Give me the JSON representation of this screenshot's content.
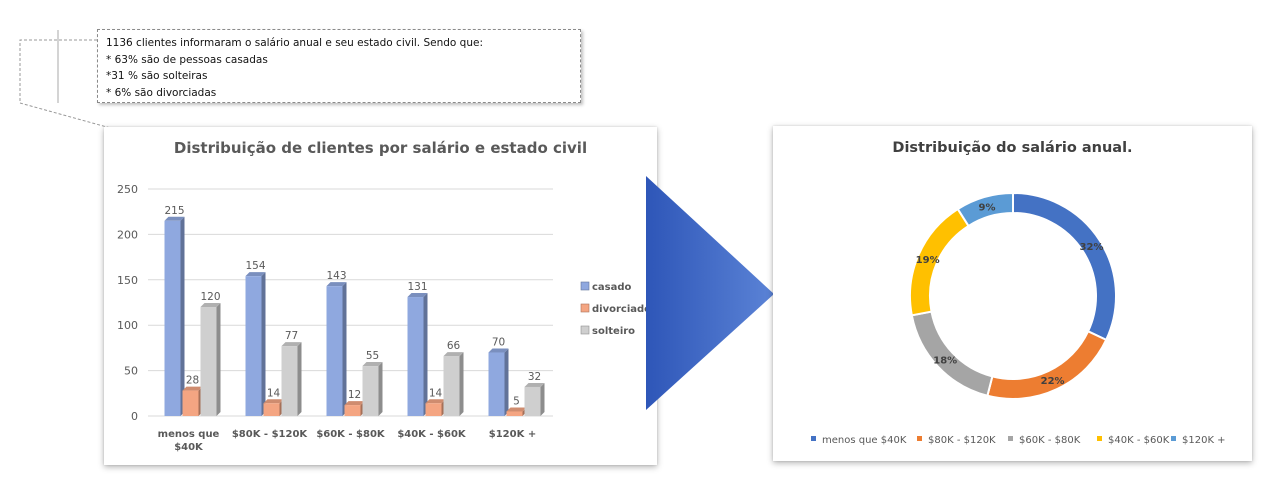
{
  "callout": {
    "lines": [
      "1136 clientes informaram o salário anual e seu estado civil. Sendo que:",
      "* 63% são de pessoas casadas",
      "*31 % são solteiras",
      "* 6% são divorciadas"
    ]
  },
  "chart_data": [
    {
      "type": "bar",
      "title": "Distribuição de clientes por salário e estado civil",
      "categories": [
        "menos que $40K",
        "$80K - $120K",
        "$60K - $80K",
        "$40K - $60K",
        "$120K +"
      ],
      "series": [
        {
          "name": "casado",
          "values": [
            215,
            154,
            143,
            131,
            70
          ],
          "color": "#8fa8df"
        },
        {
          "name": "divorciado",
          "values": [
            28,
            14,
            12,
            14,
            5
          ],
          "color": "#f4a582"
        },
        {
          "name": "solteiro",
          "values": [
            120,
            77,
            55,
            66,
            32
          ],
          "color": "#cfcfcf"
        }
      ],
      "yticks": [
        0,
        50,
        100,
        150,
        200,
        250
      ],
      "ylim": [
        0,
        250
      ],
      "xlabel": "",
      "ylabel": "",
      "grid": true,
      "legend_position": "right",
      "data_labels": true
    },
    {
      "type": "pie",
      "style": "donut",
      "title": "Distribuição do salário anual.",
      "labels": [
        "menos que $40K",
        "$80K - $120K",
        "$60K - $80K",
        "$40K - $60K",
        "$120K +"
      ],
      "values": [
        32,
        22,
        18,
        19,
        9
      ],
      "value_labels": [
        "32%",
        "22%",
        "18%",
        "19%",
        "9%"
      ],
      "colors": [
        "#4472c4",
        "#ed7d31",
        "#a5a5a5",
        "#ffc000",
        "#5b9bd5"
      ],
      "legend_position": "bottom"
    }
  ]
}
